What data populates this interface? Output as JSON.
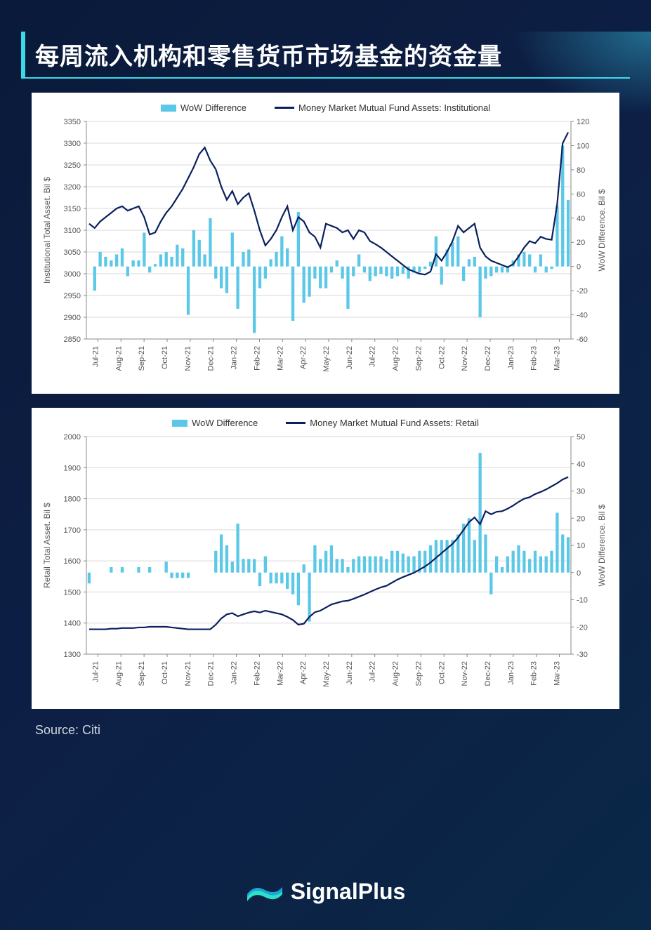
{
  "header": {
    "title": "每周流入机构和零售货币市场基金的资金量"
  },
  "source_label": "Source: Citi",
  "brand": "SignalPlus",
  "colors": {
    "bar": "#5bc8e8",
    "line": "#0b1f5e",
    "grid": "#d9d9d9",
    "panel_bg": "#ffffff",
    "page_bg": "#0d1f45",
    "accent": "#3dd9e8"
  },
  "x_labels": [
    "Jul-21",
    "Aug-21",
    "Sep-21",
    "Oct-21",
    "Nov-21",
    "Dec-21",
    "Jan-22",
    "Feb-22",
    "Mar-22",
    "Apr-22",
    "May-22",
    "Jun-22",
    "Jul-22",
    "Aug-22",
    "Sep-22",
    "Oct-22",
    "Nov-22",
    "Dec-22",
    "Jan-23",
    "Feb-23",
    "Mar-23"
  ],
  "chart1": {
    "type": "bar+line",
    "legend_bar": "WoW Difference",
    "legend_line": "Money Market Mutual Fund Assets: Institutional",
    "y_left_label": "Institutional Total Asset. Bil $",
    "y_right_label": "WoW Difference. Bil $",
    "y_left": {
      "min": 2850,
      "max": 3350,
      "step": 50
    },
    "y_right": {
      "min": -60,
      "max": 120,
      "step": 20
    },
    "line_values": [
      3115,
      3105,
      3120,
      3130,
      3140,
      3150,
      3155,
      3145,
      3150,
      3155,
      3130,
      3090,
      3095,
      3120,
      3140,
      3155,
      3175,
      3195,
      3220,
      3245,
      3275,
      3290,
      3260,
      3240,
      3200,
      3170,
      3190,
      3160,
      3175,
      3185,
      3145,
      3100,
      3065,
      3080,
      3100,
      3130,
      3155,
      3100,
      3130,
      3120,
      3095,
      3085,
      3060,
      3115,
      3110,
      3105,
      3095,
      3100,
      3080,
      3100,
      3095,
      3075,
      3068,
      3060,
      3050,
      3040,
      3030,
      3020,
      3010,
      3005,
      3000,
      2998,
      3005,
      3045,
      3030,
      3050,
      3075,
      3110,
      3095,
      3105,
      3115,
      3060,
      3040,
      3030,
      3025,
      3020,
      3015,
      3022,
      3040,
      3060,
      3075,
      3070,
      3085,
      3080,
      3078,
      3160,
      3300,
      3325
    ],
    "bar_values": [
      0,
      -20,
      12,
      8,
      5,
      10,
      15,
      -8,
      5,
      5,
      28,
      -5,
      2,
      10,
      12,
      8,
      18,
      15,
      -40,
      30,
      22,
      10,
      40,
      -10,
      -18,
      -22,
      28,
      -35,
      12,
      14,
      -55,
      -18,
      -10,
      6,
      12,
      25,
      15,
      -45,
      45,
      -30,
      -25,
      -10,
      -18,
      -18,
      -5,
      5,
      -10,
      -35,
      -8,
      10,
      -5,
      -12,
      -8,
      -6,
      -8,
      -10,
      -8,
      -6,
      -10,
      -5,
      -5,
      -2,
      4,
      25,
      -15,
      14,
      20,
      25,
      -12,
      6,
      8,
      -42,
      -10,
      -8,
      -5,
      -5,
      -5,
      5,
      10,
      12,
      10,
      -5,
      10,
      -5,
      -2,
      50,
      100,
      55
    ]
  },
  "chart2": {
    "type": "bar+line",
    "legend_bar": "WoW Difference",
    "legend_line": "Money Market Mutual Fund Assets: Retail",
    "y_left_label": "Retail Total Asset. Bil $",
    "y_right_label": "WoW Difference. Bil $",
    "y_left": {
      "min": 1300,
      "max": 2000,
      "step": 100
    },
    "y_right": {
      "min": -30,
      "max": 50,
      "step": 10
    },
    "line_values": [
      1380,
      1380,
      1380,
      1380,
      1382,
      1382,
      1384,
      1384,
      1384,
      1386,
      1386,
      1388,
      1388,
      1388,
      1388,
      1386,
      1384,
      1382,
      1380,
      1380,
      1380,
      1380,
      1380,
      1395,
      1415,
      1428,
      1432,
      1422,
      1428,
      1434,
      1438,
      1434,
      1440,
      1436,
      1432,
      1428,
      1420,
      1410,
      1395,
      1398,
      1420,
      1435,
      1440,
      1450,
      1460,
      1465,
      1470,
      1472,
      1478,
      1485,
      1492,
      1500,
      1508,
      1515,
      1520,
      1530,
      1540,
      1548,
      1555,
      1562,
      1572,
      1582,
      1595,
      1610,
      1625,
      1640,
      1655,
      1675,
      1700,
      1725,
      1740,
      1718,
      1760,
      1750,
      1758,
      1760,
      1768,
      1778,
      1790,
      1800,
      1805,
      1815,
      1822,
      1830,
      1840,
      1850,
      1862,
      1870
    ],
    "bar_values": [
      -4,
      0,
      0,
      0,
      2,
      0,
      2,
      0,
      0,
      2,
      0,
      2,
      0,
      0,
      4,
      -2,
      -2,
      -2,
      -2,
      0,
      0,
      0,
      0,
      8,
      14,
      10,
      4,
      18,
      5,
      5,
      5,
      -5,
      6,
      -4,
      -4,
      -4,
      -6,
      -8,
      -12,
      3,
      -18,
      10,
      5,
      8,
      10,
      5,
      5,
      2,
      5,
      6,
      6,
      6,
      6,
      6,
      5,
      8,
      8,
      7,
      6,
      6,
      8,
      8,
      10,
      12,
      12,
      12,
      12,
      14,
      18,
      20,
      12,
      44,
      14,
      -8,
      6,
      2,
      6,
      8,
      10,
      8,
      5,
      8,
      6,
      6,
      8,
      22,
      14,
      13
    ]
  }
}
